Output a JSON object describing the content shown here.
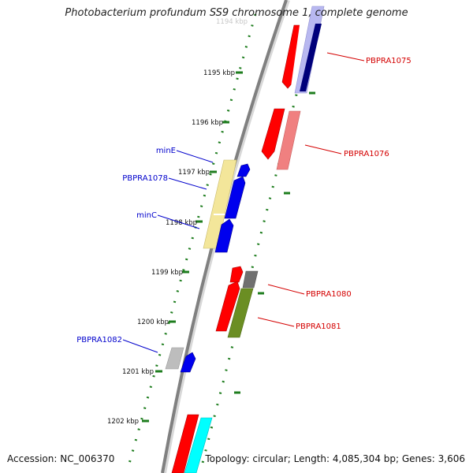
{
  "title": "Photobacterium profundum SS9 chromosome 1, complete genome",
  "footer": {
    "accession": "Accession: NC_006370",
    "summary": "Topology: circular; Length: 4,085,304 bp; Genes: 3,606"
  },
  "tick_labels": {
    "t1194": "1194 kbp",
    "t1195": "1195 kbp",
    "t1196": "1196 kbp",
    "t1197": "1197 kbp",
    "t1198": "1198 kbp",
    "t1199": "1199 kbp",
    "t1200": "1200 kbp",
    "t1201": "1201 kbp",
    "t1202": "1202 kbp"
  },
  "gene_labels": {
    "minE": "minE",
    "PBPRA1078": "PBPRA1078",
    "minC": "minC",
    "PBPRA1082": "PBPRA1082",
    "PBPRA1075": "PBPRA1075",
    "PBPRA1076": "PBPRA1076",
    "PBPRA1080": "PBPRA1080",
    "PBPRA1081": "PBPRA1081"
  },
  "colors": {
    "backbone": "#808080",
    "tick": "#1e7d1e",
    "red_cds": "#ff0000",
    "blue_cds": "#0000ee",
    "navy": "#00007a",
    "lavender": "#b8b8f0",
    "khaki": "#f3e69a",
    "salmon": "#f08080",
    "gray": "#bdbdbd",
    "darkgray": "#707070",
    "olive": "#6b8e23",
    "cyan": "#00ffff",
    "label_blue": "#0000cc",
    "label_red": "#d40000"
  }
}
